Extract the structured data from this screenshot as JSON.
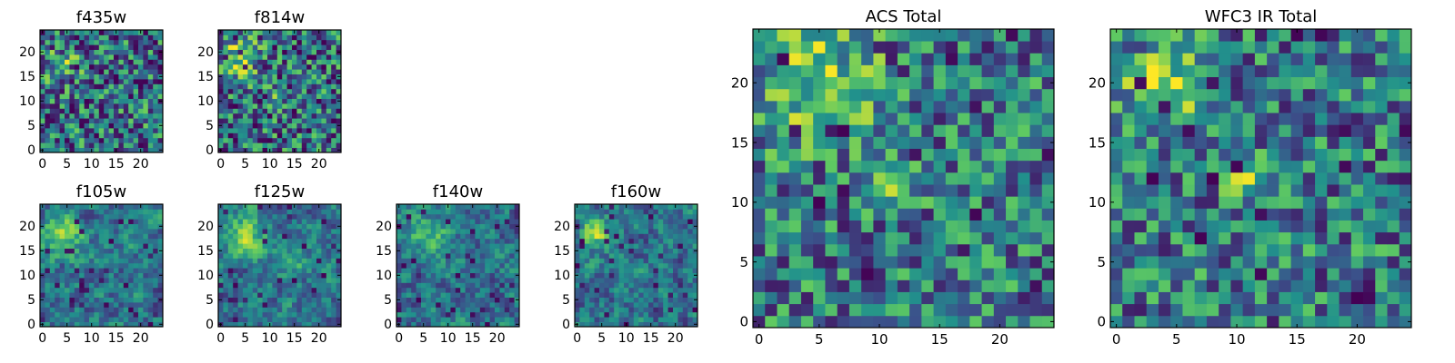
{
  "colormap": {
    "name": "viridis",
    "stops": [
      "#440154",
      "#3b528b",
      "#21918c",
      "#5ec962",
      "#fde725"
    ]
  },
  "chart_data": [
    {
      "type": "heatmap",
      "title": "f435w",
      "grid_size": 25,
      "xlim": [
        0,
        25
      ],
      "ylim": [
        0,
        25
      ],
      "xticks": [
        0,
        5,
        10,
        15,
        20
      ],
      "yticks": [
        0,
        5,
        10,
        15,
        20
      ],
      "seed": 11,
      "texture": "noisy",
      "blobs": [
        {
          "cx": 4,
          "cy": 17,
          "r": 4,
          "amp": 0.25
        }
      ],
      "dark_fraction": 0.06
    },
    {
      "type": "heatmap",
      "title": "f814w",
      "grid_size": 25,
      "xlim": [
        0,
        25
      ],
      "ylim": [
        0,
        25
      ],
      "xticks": [
        0,
        5,
        10,
        15,
        20
      ],
      "yticks": [
        0,
        5,
        10,
        15,
        20
      ],
      "seed": 23,
      "texture": "noisy",
      "blobs": [
        {
          "cx": 4,
          "cy": 19,
          "r": 4,
          "amp": 0.4
        },
        {
          "cx": 12,
          "cy": 11,
          "r": 2,
          "amp": 0.25
        }
      ],
      "dark_fraction": 0.04
    },
    {
      "type": "heatmap",
      "title": "f105w",
      "grid_size": 25,
      "xlim": [
        0,
        25
      ],
      "ylim": [
        0,
        25
      ],
      "xticks": [
        0,
        5,
        10,
        15,
        20
      ],
      "yticks": [
        0,
        5,
        10,
        15,
        20
      ],
      "seed": 37,
      "texture": "smooth",
      "blobs": [
        {
          "cx": 4,
          "cy": 18,
          "r": 4,
          "amp": 0.45
        }
      ],
      "dark_fraction": 0.05
    },
    {
      "type": "heatmap",
      "title": "f125w",
      "grid_size": 25,
      "xlim": [
        0,
        25
      ],
      "ylim": [
        0,
        25
      ],
      "xticks": [
        0,
        5,
        10,
        15,
        20
      ],
      "yticks": [
        0,
        5,
        10,
        15,
        20
      ],
      "seed": 41,
      "texture": "smooth",
      "blobs": [
        {
          "cx": 5,
          "cy": 18,
          "r": 4,
          "amp": 0.4
        },
        {
          "cx": 15,
          "cy": 13,
          "r": 3,
          "amp": 0.3
        }
      ],
      "dark_fraction": 0.06
    },
    {
      "type": "heatmap",
      "title": "f140w",
      "grid_size": 25,
      "xlim": [
        0,
        25
      ],
      "ylim": [
        0,
        25
      ],
      "xticks": [
        0,
        5,
        10,
        15,
        20
      ],
      "yticks": [
        0,
        5,
        10,
        15,
        20
      ],
      "seed": 53,
      "texture": "smooth",
      "blobs": [
        {
          "cx": 6,
          "cy": 18,
          "r": 4,
          "amp": 0.35
        }
      ],
      "dark_fraction": 0.04
    },
    {
      "type": "heatmap",
      "title": "f160w",
      "grid_size": 25,
      "xlim": [
        0,
        25
      ],
      "ylim": [
        0,
        25
      ],
      "xticks": [
        0,
        5,
        10,
        15,
        20
      ],
      "yticks": [
        0,
        5,
        10,
        15,
        20
      ],
      "seed": 67,
      "texture": "smooth",
      "blobs": [
        {
          "cx": 4,
          "cy": 19,
          "r": 3,
          "amp": 0.5
        }
      ],
      "dark_fraction": 0.04
    },
    {
      "type": "heatmap",
      "title": "ACS Total",
      "grid_size": 25,
      "xlim": [
        0,
        25
      ],
      "ylim": [
        0,
        25
      ],
      "xticks": [
        0,
        5,
        10,
        15,
        20
      ],
      "yticks": [
        0,
        5,
        10,
        15,
        20
      ],
      "seed": 79,
      "texture": "blocky",
      "blobs": [
        {
          "cx": 5,
          "cy": 20,
          "r": 5,
          "amp": 0.35
        },
        {
          "cx": 12,
          "cy": 12,
          "r": 2,
          "amp": 0.3
        }
      ],
      "dark_fraction": 0.05
    },
    {
      "type": "heatmap",
      "title": "WFC3 IR Total",
      "grid_size": 25,
      "xlim": [
        0,
        25
      ],
      "ylim": [
        0,
        25
      ],
      "xticks": [
        0,
        5,
        10,
        15,
        20
      ],
      "yticks": [
        0,
        5,
        10,
        15,
        20
      ],
      "seed": 97,
      "texture": "blocky",
      "blobs": [
        {
          "cx": 4,
          "cy": 20,
          "r": 3,
          "amp": 0.45
        },
        {
          "cx": 11,
          "cy": 12,
          "r": 2,
          "amp": 0.3
        }
      ],
      "dark_fraction": 0.05
    }
  ]
}
